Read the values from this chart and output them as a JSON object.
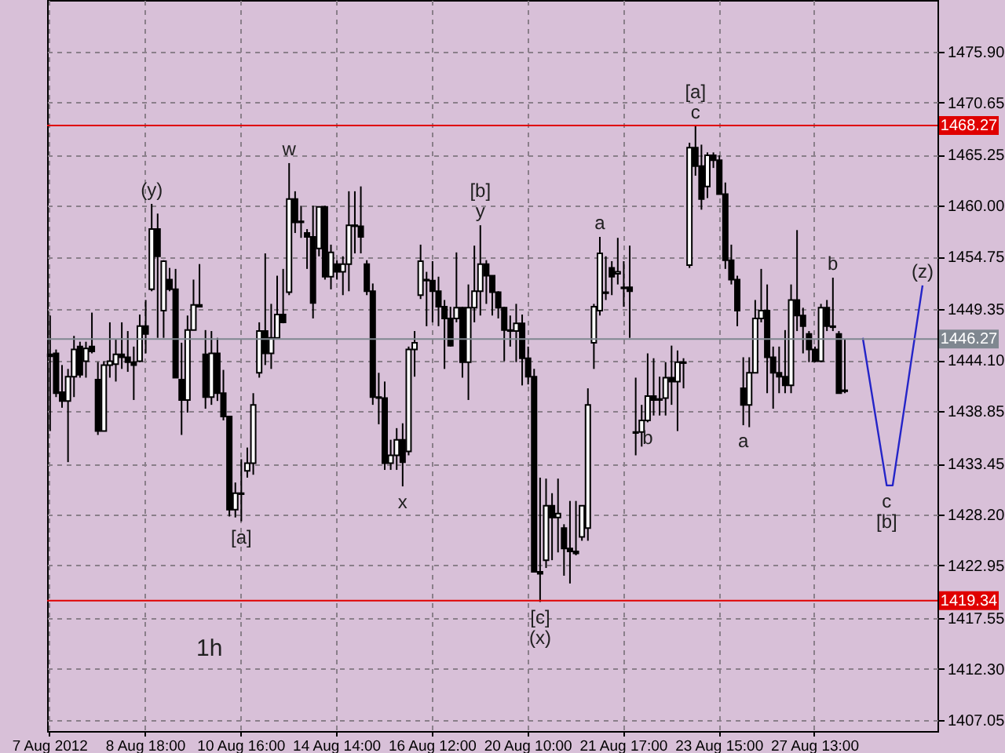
{
  "chart_data": {
    "type": "candlestick",
    "title": "1h",
    "categories": [
      "7 Aug 2012",
      null,
      null,
      null,
      null,
      null,
      null,
      null,
      null,
      null,
      null,
      null,
      null,
      null,
      null,
      null,
      "8 Aug 18:00",
      null,
      null,
      null,
      null,
      null,
      null,
      null,
      null,
      null,
      null,
      null,
      null,
      null,
      null,
      null,
      "10 Aug 16:00",
      null,
      null,
      null,
      null,
      null,
      null,
      null,
      null,
      null,
      null,
      null,
      null,
      null,
      null,
      null,
      "14 Aug 14:00",
      null,
      null,
      null,
      null,
      null,
      null,
      null,
      null,
      null,
      null,
      null,
      null,
      null,
      null,
      null,
      "16 Aug 12:00",
      null,
      null,
      null,
      null,
      null,
      null,
      null,
      null,
      null,
      null,
      null,
      null,
      null,
      null,
      null,
      "20 Aug 10:00",
      null,
      null,
      null,
      null,
      null,
      null,
      null,
      null,
      null,
      null,
      null,
      null,
      null,
      null,
      null,
      "21 Aug 17:00",
      null,
      null,
      null,
      null,
      null,
      null,
      null,
      null,
      null,
      null,
      null,
      null,
      null,
      null,
      null,
      "23 Aug 15:00",
      null,
      null,
      null,
      null,
      null,
      null,
      null,
      null,
      null,
      null,
      null,
      null,
      null,
      null,
      null,
      "27 Aug 13:00",
      null,
      null,
      null,
      null,
      null,
      null,
      null,
      null,
      null,
      null,
      null,
      null,
      null,
      null,
      null,
      null,
      null,
      null,
      null,
      null
    ],
    "ohlc": [
      [
        1444.7,
        1448.7,
        1436.8,
        1444.5
      ],
      [
        1444.8,
        1445.2,
        1440.3,
        1440.7
      ],
      [
        1440.8,
        1443.6,
        1439.2,
        1439.9
      ],
      [
        1439.9,
        1443.2,
        1433.6,
        1442.4
      ],
      [
        1442.4,
        1446.6,
        1440.3,
        1445.2
      ],
      [
        1445.5,
        1446.0,
        1442.3,
        1442.6
      ],
      [
        1444.0,
        1446.0,
        1442.3,
        1445.3
      ],
      [
        1445.5,
        1449.0,
        1444.8,
        1445.0
      ],
      [
        1442.1,
        1443.9,
        1436.4,
        1436.8
      ],
      [
        1436.8,
        1444.0,
        1436.8,
        1443.6
      ],
      [
        1443.6,
        1448.0,
        1442.3,
        1444.0
      ],
      [
        1443.7,
        1446.3,
        1441.9,
        1444.7
      ],
      [
        1444.7,
        1448.0,
        1443.2,
        1444.4
      ],
      [
        1444.4,
        1447.1,
        1442.9,
        1443.9
      ],
      [
        1443.9,
        1445.5,
        1440.0,
        1443.6
      ],
      [
        1444.0,
        1448.8,
        1443.9,
        1447.6
      ],
      [
        1447.6,
        1450.3,
        1444.8,
        1446.8
      ],
      [
        1451.4,
        1460.2,
        1451.2,
        1457.6
      ],
      [
        1457.6,
        1459.2,
        1446.4,
        1454.8
      ],
      [
        1449.2,
        1454.4,
        1446.4,
        1454.3
      ],
      [
        1452.4,
        1453.6,
        1451.2,
        1451.4
      ],
      [
        1451.4,
        1453.5,
        1442.3,
        1442.3
      ],
      [
        1442.1,
        1445.9,
        1436.4,
        1440.0
      ],
      [
        1440.0,
        1448.7,
        1438.7,
        1447.2
      ],
      [
        1447.2,
        1452.4,
        1447.2,
        1449.8
      ],
      [
        1449.8,
        1454.0,
        1449.6,
        1449.6
      ],
      [
        1444.7,
        1447.2,
        1439.1,
        1440.3
      ],
      [
        1440.3,
        1447.1,
        1439.5,
        1444.8
      ],
      [
        1444.8,
        1446.4,
        1439.9,
        1440.7
      ],
      [
        1440.7,
        1443.1,
        1437.9,
        1438.3
      ],
      [
        1438.3,
        1438.3,
        1428.0,
        1428.7
      ],
      [
        1428.7,
        1431.5,
        1427.9,
        1430.4
      ],
      [
        1430.4,
        1433.9,
        1427.5,
        1430.3
      ],
      [
        1432.7,
        1435.1,
        1432.0,
        1433.5
      ],
      [
        1433.5,
        1440.7,
        1432.3,
        1439.5
      ],
      [
        1442.8,
        1448.0,
        1442.3,
        1447.1
      ],
      [
        1447.1,
        1455.1,
        1443.6,
        1444.8
      ],
      [
        1444.8,
        1449.9,
        1443.2,
        1446.4
      ],
      [
        1446.4,
        1452.8,
        1446.4,
        1448.8
      ],
      [
        1448.8,
        1453.5,
        1447.9,
        1448.0
      ],
      [
        1451.1,
        1464.4,
        1450.8,
        1460.7
      ],
      [
        1460.7,
        1461.5,
        1457.2,
        1458.3
      ],
      [
        1458.3,
        1460.0,
        1456.7,
        1458.4
      ],
      [
        1457.2,
        1457.6,
        1453.5,
        1456.8
      ],
      [
        1456.8,
        1460.0,
        1448.4,
        1450.0
      ],
      [
        1455.6,
        1459.9,
        1454.8,
        1459.9
      ],
      [
        1459.9,
        1460.0,
        1452.4,
        1452.7
      ],
      [
        1452.7,
        1456.0,
        1451.4,
        1455.2
      ],
      [
        1454.0,
        1454.4,
        1452.4,
        1453.2
      ],
      [
        1453.2,
        1454.8,
        1450.8,
        1454.0
      ],
      [
        1454.0,
        1461.5,
        1451.2,
        1458.0
      ],
      [
        1458.0,
        1461.5,
        1455.1,
        1457.9
      ],
      [
        1457.9,
        1462.0,
        1455.1,
        1456.8
      ],
      [
        1454.0,
        1454.4,
        1450.8,
        1451.2
      ],
      [
        1451.2,
        1452.0,
        1439.5,
        1440.3
      ],
      [
        1440.3,
        1442.8,
        1437.5,
        1440.2
      ],
      [
        1440.2,
        1441.9,
        1432.8,
        1433.5
      ],
      [
        1433.5,
        1435.9,
        1432.8,
        1434.3
      ],
      [
        1434.3,
        1437.1,
        1432.8,
        1435.9
      ],
      [
        1435.9,
        1437.6,
        1431.1,
        1433.6
      ],
      [
        1434.7,
        1445.5,
        1434.3,
        1445.2
      ],
      [
        1445.2,
        1447.1,
        1442.4,
        1445.9
      ],
      [
        1450.8,
        1456.0,
        1450.4,
        1454.3
      ],
      [
        1452.4,
        1453.2,
        1447.6,
        1452.3
      ],
      [
        1452.3,
        1454.3,
        1448.0,
        1451.2
      ],
      [
        1451.2,
        1452.7,
        1447.6,
        1449.6
      ],
      [
        1449.6,
        1450.3,
        1443.2,
        1448.4
      ],
      [
        1448.4,
        1449.6,
        1445.5,
        1445.6
      ],
      [
        1448.4,
        1455.2,
        1448.0,
        1449.5
      ],
      [
        1449.5,
        1449.6,
        1442.3,
        1443.9
      ],
      [
        1443.9,
        1451.9,
        1440.0,
        1449.5
      ],
      [
        1449.5,
        1455.9,
        1448.0,
        1451.2
      ],
      [
        1451.2,
        1458.0,
        1448.7,
        1454.0
      ],
      [
        1454.0,
        1454.4,
        1449.9,
        1452.8
      ],
      [
        1452.8,
        1452.8,
        1448.7,
        1451.1
      ],
      [
        1451.1,
        1451.2,
        1448.4,
        1449.5
      ],
      [
        1449.5,
        1449.6,
        1444.0,
        1447.2
      ],
      [
        1447.2,
        1448.7,
        1445.5,
        1447.1
      ],
      [
        1447.1,
        1449.9,
        1443.9,
        1447.9
      ],
      [
        1447.9,
        1448.8,
        1441.5,
        1444.3
      ],
      [
        1444.3,
        1445.5,
        1441.6,
        1442.4
      ],
      [
        1442.4,
        1443.2,
        1422.3,
        1422.3
      ],
      [
        1422.3,
        1432.0,
        1419.2,
        1422.1
      ],
      [
        1423.5,
        1431.9,
        1422.7,
        1429.1
      ],
      [
        1429.1,
        1430.4,
        1423.5,
        1427.9
      ],
      [
        1427.9,
        1431.9,
        1424.3,
        1428.3
      ],
      [
        1426.8,
        1427.2,
        1421.9,
        1424.7
      ],
      [
        1424.7,
        1429.6,
        1421.1,
        1424.4
      ],
      [
        1424.4,
        1429.6,
        1424.0,
        1424.2
      ],
      [
        1425.9,
        1429.1,
        1425.5,
        1429.1
      ],
      [
        1426.8,
        1441.2,
        1425.5,
        1439.5
      ],
      [
        1445.9,
        1449.9,
        1443.2,
        1449.6
      ],
      [
        1449.2,
        1456.8,
        1448.7,
        1455.1
      ],
      [
        1451.1,
        1454.8,
        1450.3,
        1451.0
      ],
      [
        1453.6,
        1454.3,
        1450.8,
        1452.7
      ],
      [
        1453.0,
        1456.7,
        1451.9,
        1453.2
      ],
      [
        1451.6,
        1454.3,
        1449.6,
        1451.5
      ],
      [
        1451.6,
        1455.9,
        1446.4,
        1451.2
      ],
      [
        1436.7,
        1442.3,
        1434.3,
        1436.6
      ],
      [
        1436.7,
        1439.5,
        1435.2,
        1437.9
      ],
      [
        1437.9,
        1444.8,
        1437.7,
        1440.4
      ],
      [
        1440.4,
        1444.3,
        1438.4,
        1440.0
      ],
      [
        1440.0,
        1442.4,
        1438.4,
        1440.1
      ],
      [
        1440.2,
        1443.9,
        1438.4,
        1442.3
      ],
      [
        1442.3,
        1445.6,
        1439.5,
        1441.9
      ],
      [
        1441.9,
        1445.1,
        1436.8,
        1443.9
      ],
      [
        1443.9,
        1444.3,
        1441.2,
        1443.8
      ],
      [
        1453.9,
        1466.5,
        1453.6,
        1466.0
      ],
      [
        1466.0,
        1468.2,
        1463.1,
        1464.1
      ],
      [
        1464.1,
        1466.3,
        1459.6,
        1460.7
      ],
      [
        1462.0,
        1465.5,
        1460.8,
        1465.2
      ],
      [
        1465.2,
        1465.5,
        1463.9,
        1464.7
      ],
      [
        1464.7,
        1465.2,
        1461.2,
        1461.2
      ],
      [
        1461.2,
        1462.4,
        1453.5,
        1454.4
      ],
      [
        1454.4,
        1456.0,
        1451.9,
        1452.4
      ],
      [
        1452.4,
        1452.8,
        1447.6,
        1449.2
      ],
      [
        1441.2,
        1444.4,
        1437.4,
        1439.5
      ],
      [
        1439.5,
        1444.4,
        1437.2,
        1442.8
      ],
      [
        1442.8,
        1450.3,
        1442.8,
        1448.4
      ],
      [
        1448.4,
        1453.5,
        1448.0,
        1449.2
      ],
      [
        1449.2,
        1451.9,
        1440.7,
        1444.4
      ],
      [
        1444.4,
        1445.5,
        1439.1,
        1442.8
      ],
      [
        1442.8,
        1445.5,
        1440.7,
        1442.4
      ],
      [
        1442.4,
        1447.2,
        1440.7,
        1441.5
      ],
      [
        1441.5,
        1451.9,
        1440.7,
        1450.3
      ],
      [
        1450.3,
        1457.5,
        1447.1,
        1448.7
      ],
      [
        1448.7,
        1449.5,
        1444.8,
        1447.6
      ],
      [
        1446.8,
        1447.1,
        1443.9,
        1445.2
      ],
      [
        1445.2,
        1445.5,
        1443.9,
        1444.0
      ],
      [
        1444.0,
        1449.9,
        1443.9,
        1449.5
      ],
      [
        1449.5,
        1450.3,
        1447.1,
        1447.6
      ],
      [
        1447.6,
        1452.6,
        1447.1,
        1447.5
      ],
      [
        1446.8,
        1447.1,
        1440.7,
        1440.7
      ],
      [
        1441.0,
        1446.3,
        1440.7,
        1440.9
      ],
      null,
      null,
      null,
      null,
      null,
      null,
      null,
      null,
      null,
      null,
      null,
      null,
      null,
      null,
      null
    ],
    "series": [
      {
        "type": "line",
        "color": "#2424c8",
        "values": [
          null,
          null,
          null,
          null,
          null,
          null,
          null,
          null,
          null,
          null,
          null,
          null,
          null,
          null,
          null,
          null,
          null,
          null,
          null,
          null,
          null,
          null,
          null,
          null,
          null,
          null,
          null,
          null,
          null,
          null,
          null,
          null,
          null,
          null,
          null,
          null,
          null,
          null,
          null,
          null,
          null,
          null,
          null,
          null,
          null,
          null,
          null,
          null,
          null,
          null,
          null,
          null,
          null,
          null,
          null,
          null,
          null,
          null,
          null,
          null,
          null,
          null,
          null,
          null,
          null,
          null,
          null,
          null,
          null,
          null,
          null,
          null,
          null,
          null,
          null,
          null,
          null,
          null,
          null,
          null,
          null,
          null,
          null,
          null,
          null,
          null,
          null,
          null,
          null,
          null,
          null,
          null,
          null,
          null,
          null,
          null,
          null,
          null,
          null,
          null,
          null,
          null,
          null,
          null,
          null,
          null,
          null,
          null,
          null,
          null,
          null,
          null,
          null,
          null,
          null,
          null,
          null,
          null,
          null,
          null,
          null,
          null,
          null,
          null,
          null,
          null,
          null,
          null,
          null,
          null,
          null,
          null,
          null,
          null,
          null,
          null,
          1446.4,
          1442.6,
          1438.8,
          1435.0,
          1431.2,
          1431.2,
          1435.3,
          1439.4,
          1443.6,
          1447.7,
          1451.8,
          null,
          null
        ]
      }
    ],
    "ylim": [
      1405.9,
      1481.2
    ],
    "yticks": [
      {
        "value": 1407.05,
        "label": "1407.05"
      },
      {
        "value": 1412.3,
        "label": "1412.30"
      },
      {
        "value": 1417.55,
        "label": "1417.55"
      },
      {
        "value": 1422.95,
        "label": "1422.95"
      },
      {
        "value": 1428.2,
        "label": "1428.20"
      },
      {
        "value": 1433.45,
        "label": "1433.45"
      },
      {
        "value": 1438.85,
        "label": "1438.85"
      },
      {
        "value": 1444.1,
        "label": "1444.10"
      },
      {
        "value": 1449.35,
        "label": "1449.35"
      },
      {
        "value": 1454.75,
        "label": "1454.75"
      },
      {
        "value": 1460.0,
        "label": "1460.00"
      },
      {
        "value": 1465.25,
        "label": "1465.25"
      },
      {
        "value": 1470.65,
        "label": "1470.65"
      },
      {
        "value": 1475.9,
        "label": "1475.90"
      }
    ],
    "grid": true,
    "ref_lines": [
      {
        "axis": "y",
        "value": 1468.27,
        "label": "1468.27",
        "color": "#e00000"
      },
      {
        "axis": "y",
        "value": 1446.27,
        "label": "1446.27",
        "color": "#7f8790"
      },
      {
        "axis": "y",
        "value": 1419.34,
        "label": "1419.34",
        "color": "#e00000"
      }
    ],
    "annotations": [
      {
        "text": "(y)",
        "y": 1460.2
      },
      {
        "text": "w",
        "y": 1464.4
      },
      {
        "text": "[a]",
        "y": 1427.5
      },
      {
        "text": "x",
        "y": 1431.1
      },
      {
        "text": "y",
        "y": 1458.0
      },
      {
        "text": "[b]",
        "y": 1458.0
      },
      {
        "text": "[c]",
        "y": 1419.2
      },
      {
        "text": "(x)",
        "y": 1419.2
      },
      {
        "text": "a",
        "y": 1456.8
      },
      {
        "text": "b",
        "y": 1437.7
      },
      {
        "text": "c",
        "y": 1468.2
      },
      {
        "text": "[a]",
        "y": 1468.2
      },
      {
        "text": "a",
        "y": 1437.4
      },
      {
        "text": "b",
        "y": 1452.6
      },
      {
        "text": "c",
        "y": 1431.2
      },
      {
        "text": "[b]",
        "y": 1431.2
      },
      {
        "text": "(z)",
        "y": 1451.8
      }
    ]
  }
}
